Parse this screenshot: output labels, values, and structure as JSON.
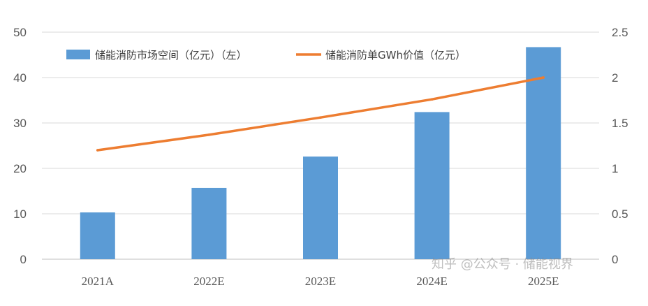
{
  "chart_data": {
    "type": "bar+line",
    "categories": [
      "2021A",
      "2022E",
      "2023E",
      "2024E",
      "2025E"
    ],
    "series": [
      {
        "name": "储能消防市场空间（亿元）（左）",
        "type": "bar",
        "axis": "left",
        "values": [
          10.3,
          15.7,
          22.6,
          32.4,
          46.7
        ]
      },
      {
        "name": "储能消防单GWh价值（亿元）",
        "type": "line",
        "axis": "right",
        "values": [
          1.2,
          1.37,
          1.56,
          1.76,
          2.0
        ]
      }
    ],
    "y_left": {
      "range": [
        0,
        50
      ],
      "ticks": [
        "0",
        "10",
        "20",
        "30",
        "40",
        "50"
      ]
    },
    "y_right": {
      "range": [
        0,
        2.5
      ],
      "ticks": [
        "0",
        "0.5",
        "1",
        "1.5",
        "2",
        "2.5"
      ]
    },
    "grid": true,
    "legend_position": "top",
    "colors": {
      "bar": "#5b9bd5",
      "line": "#ed7d31",
      "grid": "#d9d9d9",
      "axis_text": "#595959"
    }
  },
  "watermark": "知乎 @公众号 · 储能视界"
}
